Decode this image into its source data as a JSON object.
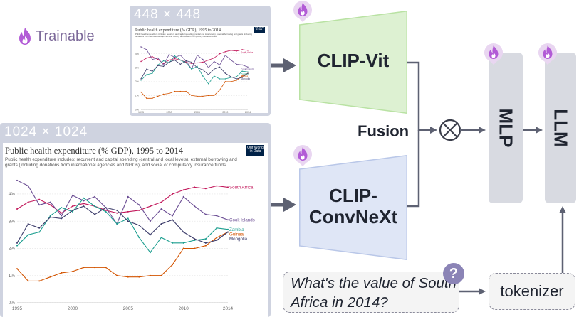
{
  "legend": {
    "label": "Trainable",
    "icon": "fire-icon"
  },
  "inputs": {
    "small": {
      "resolution_label": "448 × 448"
    },
    "large": {
      "resolution_label": "1024 × 1024"
    }
  },
  "encoders": {
    "vit": {
      "label": "CLIP-Vit",
      "color": "#ddf1d2"
    },
    "convnext": {
      "label_line1": "CLIP-",
      "label_line2": "ConvNeXt",
      "color": "#dfe6f6"
    }
  },
  "fusion": {
    "label": "Fusion",
    "operator_icon": "circled-times-icon"
  },
  "mlp": {
    "label": "MLP"
  },
  "llm": {
    "label": "LLM"
  },
  "question": {
    "text": "What's the value of South Africa in 2014?",
    "badge": "?"
  },
  "tokenizer": {
    "label": "tokenizer"
  },
  "colors": {
    "arrow": "#5d6172",
    "fire": "#b25bd6",
    "fire_badge_bg": "#e9d6f1"
  },
  "chart_data": {
    "type": "line",
    "title": "Public health expenditure (% GDP), 1995 to 2014",
    "subtitle": "Public health expenditure includes: recurrent and capital spending (central and local levels), external borrowing and grants (including donations from international agencies and NGOs), and social or compulsory insurance funds.",
    "badge_line1": "Our World",
    "badge_line2": "in Data",
    "x": [
      1995,
      1996,
      1997,
      1998,
      1999,
      2000,
      2001,
      2002,
      2003,
      2004,
      2005,
      2006,
      2007,
      2008,
      2009,
      2010,
      2011,
      2012,
      2013,
      2014
    ],
    "x_ticks": [
      1995,
      2000,
      2005,
      2010,
      2014
    ],
    "y_ticks": [
      0,
      1,
      2,
      3,
      4
    ],
    "y_unit": "%",
    "ylim": [
      0,
      4.6
    ],
    "grid": true,
    "series": [
      {
        "name": "South Africa",
        "color": "#c2185b",
        "values": [
          3.45,
          3.7,
          3.8,
          3.6,
          3.3,
          3.55,
          3.65,
          3.55,
          3.4,
          3.3,
          3.35,
          3.4,
          3.55,
          3.7,
          4.0,
          4.15,
          4.25,
          4.2,
          4.3,
          4.25
        ]
      },
      {
        "name": "Cook Islands",
        "color": "#6a4c93",
        "values": [
          4.5,
          4.3,
          3.6,
          3.7,
          3.2,
          3.95,
          3.75,
          3.9,
          3.5,
          2.9,
          3.9,
          3.6,
          3.0,
          3.45,
          3.2,
          3.9,
          3.55,
          3.25,
          3.2,
          3.05
        ]
      },
      {
        "name": "Zambia",
        "color": "#1b9e8f",
        "values": [
          2.1,
          2.5,
          2.6,
          3.2,
          3.5,
          3.35,
          3.85,
          3.55,
          3.35,
          2.9,
          3.1,
          2.4,
          1.85,
          2.4,
          2.2,
          2.2,
          2.3,
          2.35,
          2.75,
          2.7
        ]
      },
      {
        "name": "Guinea",
        "color": "#d35400",
        "values": [
          1.25,
          0.8,
          0.8,
          0.95,
          1.1,
          1.15,
          1.3,
          1.3,
          1.3,
          1.0,
          0.95,
          0.95,
          1.0,
          1.0,
          1.4,
          2.0,
          2.0,
          2.1,
          2.4,
          2.6
        ]
      },
      {
        "name": "Mongolia",
        "color": "#3d3d6b",
        "values": [
          2.2,
          2.9,
          2.75,
          3.15,
          3.1,
          3.4,
          3.55,
          3.25,
          3.5,
          3.4,
          3.0,
          2.85,
          2.5,
          2.9,
          3.05,
          2.6,
          2.35,
          2.2,
          2.3,
          2.6
        ]
      }
    ]
  }
}
